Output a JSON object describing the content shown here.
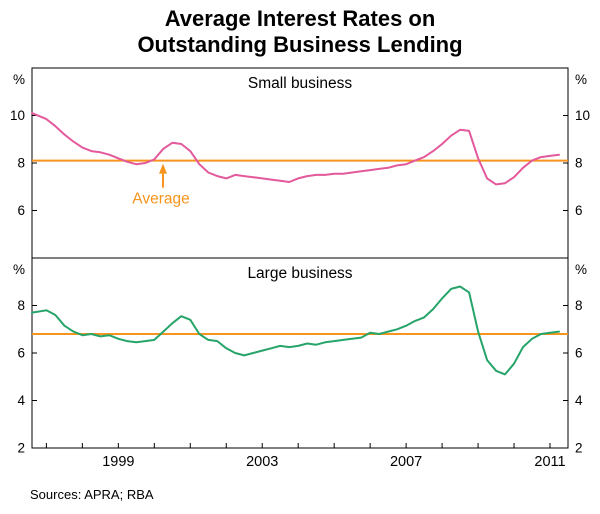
{
  "title": {
    "line1": "Average Interest Rates on",
    "line2": "Outstanding Business Lending"
  },
  "footer": {
    "sources": "Sources: APRA; RBA"
  },
  "chart_data": {
    "type": "line",
    "title": "Average Interest Rates on Outstanding Business Lending",
    "grid": false,
    "legend": "none",
    "x_range": [
      1996.6,
      2011.5
    ],
    "x_tick_labels": [
      1999,
      2003,
      2007,
      2011
    ],
    "panels": [
      {
        "title": "Small business",
        "unit_label": "%",
        "ylim": [
          4,
          12
        ],
        "yticks": [
          10,
          8,
          6
        ],
        "average_value": 8.1,
        "average_label": "Average",
        "average_color": "#f7941d",
        "series": [
          {
            "name": "small-business-rate",
            "color": "#e3599b",
            "points": [
              [
                1996.6,
                10.1
              ],
              [
                1997,
                9.85
              ],
              [
                1997.25,
                9.55
              ],
              [
                1997.5,
                9.2
              ],
              [
                1997.75,
                8.9
              ],
              [
                1998,
                8.65
              ],
              [
                1998.25,
                8.5
              ],
              [
                1998.5,
                8.45
              ],
              [
                1998.75,
                8.35
              ],
              [
                1999,
                8.2
              ],
              [
                1999.25,
                8.05
              ],
              [
                1999.5,
                7.95
              ],
              [
                1999.75,
                8.0
              ],
              [
                2000,
                8.15
              ],
              [
                2000.25,
                8.6
              ],
              [
                2000.5,
                8.85
              ],
              [
                2000.75,
                8.8
              ],
              [
                2001,
                8.5
              ],
              [
                2001.25,
                7.95
              ],
              [
                2001.5,
                7.6
              ],
              [
                2001.75,
                7.45
              ],
              [
                2002,
                7.35
              ],
              [
                2002.25,
                7.5
              ],
              [
                2002.5,
                7.45
              ],
              [
                2002.75,
                7.4
              ],
              [
                2003,
                7.35
              ],
              [
                2003.25,
                7.3
              ],
              [
                2003.5,
                7.25
              ],
              [
                2003.75,
                7.2
              ],
              [
                2004,
                7.35
              ],
              [
                2004.25,
                7.45
              ],
              [
                2004.5,
                7.5
              ],
              [
                2004.75,
                7.5
              ],
              [
                2005,
                7.55
              ],
              [
                2005.25,
                7.55
              ],
              [
                2005.5,
                7.6
              ],
              [
                2005.75,
                7.65
              ],
              [
                2006,
                7.7
              ],
              [
                2006.25,
                7.75
              ],
              [
                2006.5,
                7.8
              ],
              [
                2006.75,
                7.9
              ],
              [
                2007,
                7.95
              ],
              [
                2007.25,
                8.1
              ],
              [
                2007.5,
                8.25
              ],
              [
                2007.75,
                8.5
              ],
              [
                2008,
                8.8
              ],
              [
                2008.25,
                9.15
              ],
              [
                2008.5,
                9.4
              ],
              [
                2008.75,
                9.35
              ],
              [
                2009,
                8.2
              ],
              [
                2009.25,
                7.35
              ],
              [
                2009.5,
                7.1
              ],
              [
                2009.75,
                7.15
              ],
              [
                2010,
                7.4
              ],
              [
                2010.25,
                7.8
              ],
              [
                2010.5,
                8.1
              ],
              [
                2010.75,
                8.25
              ],
              [
                2011,
                8.3
              ],
              [
                2011.25,
                8.35
              ]
            ]
          }
        ]
      },
      {
        "title": "Large business",
        "unit_label": "%",
        "ylim": [
          2,
          10
        ],
        "yticks": [
          8,
          6,
          4
        ],
        "bottom_tick_label": 2,
        "average_value": 6.8,
        "average_color": "#f7941d",
        "series": [
          {
            "name": "large-business-rate",
            "color": "#26a469",
            "points": [
              [
                1996.6,
                7.7
              ],
              [
                1997,
                7.8
              ],
              [
                1997.25,
                7.6
              ],
              [
                1997.5,
                7.15
              ],
              [
                1997.75,
                6.9
              ],
              [
                1998,
                6.75
              ],
              [
                1998.25,
                6.8
              ],
              [
                1998.5,
                6.7
              ],
              [
                1998.75,
                6.75
              ],
              [
                1999,
                6.6
              ],
              [
                1999.25,
                6.5
              ],
              [
                1999.5,
                6.45
              ],
              [
                1999.75,
                6.5
              ],
              [
                2000,
                6.55
              ],
              [
                2000.25,
                6.9
              ],
              [
                2000.5,
                7.25
              ],
              [
                2000.75,
                7.55
              ],
              [
                2001,
                7.4
              ],
              [
                2001.25,
                6.8
              ],
              [
                2001.5,
                6.55
              ],
              [
                2001.75,
                6.5
              ],
              [
                2002,
                6.2
              ],
              [
                2002.25,
                6.0
              ],
              [
                2002.5,
                5.9
              ],
              [
                2002.75,
                6.0
              ],
              [
                2003,
                6.1
              ],
              [
                2003.25,
                6.2
              ],
              [
                2003.5,
                6.3
              ],
              [
                2003.75,
                6.25
              ],
              [
                2004,
                6.3
              ],
              [
                2004.25,
                6.4
              ],
              [
                2004.5,
                6.35
              ],
              [
                2004.75,
                6.45
              ],
              [
                2005,
                6.5
              ],
              [
                2005.25,
                6.55
              ],
              [
                2005.5,
                6.6
              ],
              [
                2005.75,
                6.65
              ],
              [
                2006,
                6.85
              ],
              [
                2006.25,
                6.8
              ],
              [
                2006.5,
                6.9
              ],
              [
                2006.75,
                7.0
              ],
              [
                2007,
                7.15
              ],
              [
                2007.25,
                7.35
              ],
              [
                2007.5,
                7.5
              ],
              [
                2007.75,
                7.85
              ],
              [
                2008,
                8.3
              ],
              [
                2008.25,
                8.7
              ],
              [
                2008.5,
                8.8
              ],
              [
                2008.75,
                8.55
              ],
              [
                2009,
                6.9
              ],
              [
                2009.25,
                5.7
              ],
              [
                2009.5,
                5.25
              ],
              [
                2009.75,
                5.1
              ],
              [
                2010,
                5.55
              ],
              [
                2010.25,
                6.25
              ],
              [
                2010.5,
                6.6
              ],
              [
                2010.75,
                6.8
              ],
              [
                2011,
                6.85
              ],
              [
                2011.25,
                6.9
              ]
            ]
          }
        ]
      }
    ]
  }
}
